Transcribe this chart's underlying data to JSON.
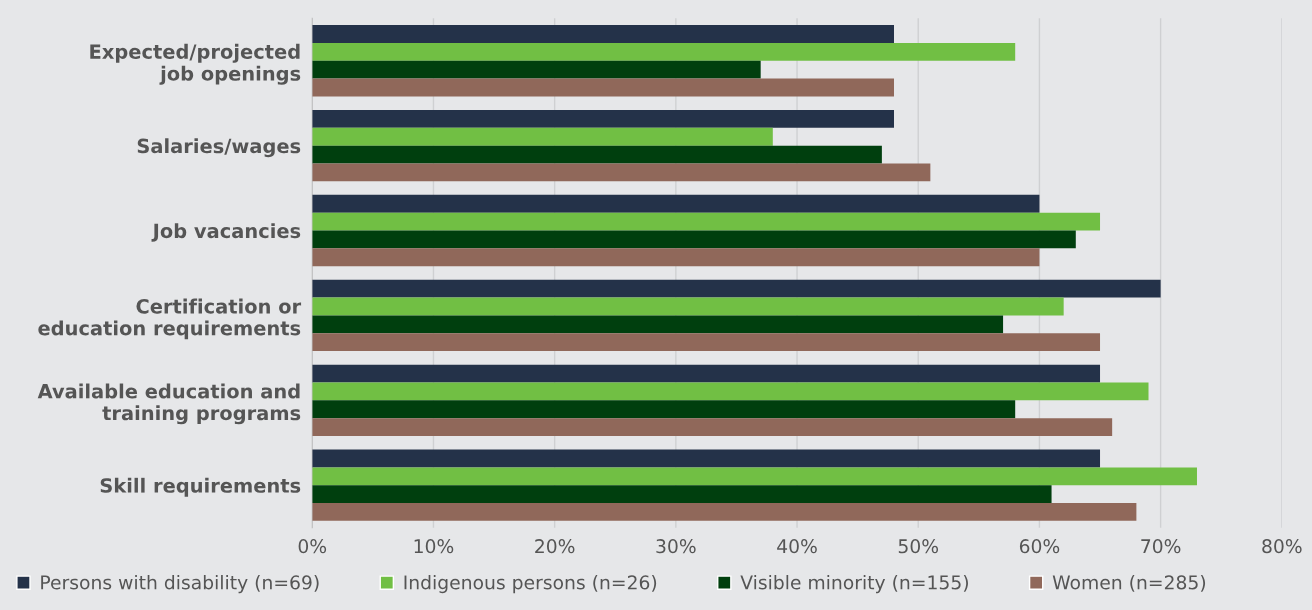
{
  "chart_data": {
    "type": "bar",
    "orientation": "horizontal",
    "categories": [
      "Expected/projected\njob openings",
      "Salaries/wages",
      "Job vacancies",
      "Certification or\neducation requirements",
      "Available education and\ntraining programs",
      "Skill requirements"
    ],
    "series": [
      {
        "name": "Persons with disability (n=69)",
        "color": "#243249",
        "values": [
          48,
          48,
          60,
          70,
          65,
          65
        ]
      },
      {
        "name": "Indigenous persons (n=26)",
        "color": "#71bf44",
        "values": [
          58,
          38,
          65,
          62,
          69,
          73
        ]
      },
      {
        "name": "Visible minority (n=155)",
        "color": "#003f0e",
        "values": [
          37,
          47,
          63,
          57,
          58,
          61
        ]
      },
      {
        "name": "Women (n=285)",
        "color": "#90685a",
        "values": [
          48,
          51,
          60,
          65,
          66,
          68
        ]
      }
    ],
    "xlim": [
      0,
      80
    ],
    "xticks": [
      {
        "value": 0,
        "label": "0%"
      },
      {
        "value": 10,
        "label": "10%"
      },
      {
        "value": 20,
        "label": "20%"
      },
      {
        "value": 30,
        "label": "30%"
      },
      {
        "value": 40,
        "label": "40%"
      },
      {
        "value": 50,
        "label": "50%"
      },
      {
        "value": 60,
        "label": "60%"
      },
      {
        "value": 70,
        "label": "70%"
      },
      {
        "value": 80,
        "label": "80%"
      }
    ],
    "grid": "x",
    "legend": "bottom"
  }
}
